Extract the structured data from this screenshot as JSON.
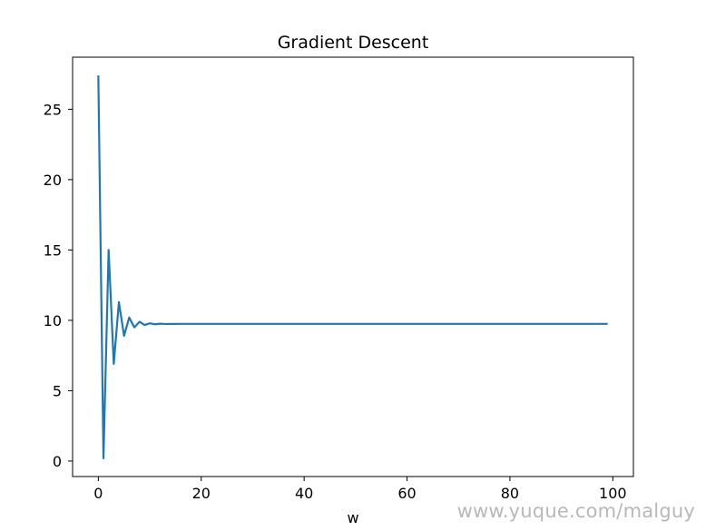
{
  "chart_data": {
    "type": "line",
    "title": "Gradient Descent",
    "xlabel": "w",
    "ylabel": "",
    "xlim": [
      -5,
      104
    ],
    "ylim": [
      -1.1,
      28.7
    ],
    "xticks": [
      0,
      20,
      40,
      60,
      80,
      100
    ],
    "yticks": [
      0,
      5,
      10,
      15,
      20,
      25
    ],
    "grid": false,
    "series": [
      {
        "color": "#1f77b4",
        "x": [
          0,
          1,
          2,
          3,
          4,
          5,
          6,
          7,
          8,
          9,
          10,
          11,
          12,
          13,
          14,
          15,
          16,
          17,
          18,
          19,
          20,
          21,
          22,
          23,
          24,
          25,
          26,
          27,
          28,
          29,
          30,
          31,
          32,
          33,
          34,
          35,
          36,
          37,
          38,
          39,
          40,
          41,
          42,
          43,
          44,
          45,
          46,
          47,
          48,
          49,
          50,
          51,
          52,
          53,
          54,
          55,
          56,
          57,
          58,
          59,
          60,
          61,
          62,
          63,
          64,
          65,
          66,
          67,
          68,
          69,
          70,
          71,
          72,
          73,
          74,
          75,
          76,
          77,
          78,
          79,
          80,
          81,
          82,
          83,
          84,
          85,
          86,
          87,
          88,
          89,
          90,
          91,
          92,
          93,
          94,
          95,
          96,
          97,
          98,
          99
        ],
        "y": [
          27.4,
          0.2,
          15.0,
          6.9,
          11.3,
          8.9,
          10.2,
          9.5,
          9.9,
          9.67,
          9.79,
          9.72,
          9.76,
          9.74,
          9.75,
          9.745,
          9.75,
          9.75,
          9.75,
          9.75,
          9.75,
          9.75,
          9.75,
          9.75,
          9.75,
          9.75,
          9.75,
          9.75,
          9.75,
          9.75,
          9.75,
          9.75,
          9.75,
          9.75,
          9.75,
          9.75,
          9.75,
          9.75,
          9.75,
          9.75,
          9.75,
          9.75,
          9.75,
          9.75,
          9.75,
          9.75,
          9.75,
          9.75,
          9.75,
          9.75,
          9.75,
          9.75,
          9.75,
          9.75,
          9.75,
          9.75,
          9.75,
          9.75,
          9.75,
          9.75,
          9.75,
          9.75,
          9.75,
          9.75,
          9.75,
          9.75,
          9.75,
          9.75,
          9.75,
          9.75,
          9.75,
          9.75,
          9.75,
          9.75,
          9.75,
          9.75,
          9.75,
          9.75,
          9.75,
          9.75,
          9.75,
          9.75,
          9.75,
          9.75,
          9.75,
          9.75,
          9.75,
          9.75,
          9.75,
          9.75,
          9.75,
          9.75,
          9.75,
          9.75,
          9.75,
          9.75,
          9.75,
          9.75,
          9.75,
          9.75
        ]
      }
    ]
  },
  "watermark": "www.yuque.com/malguy"
}
